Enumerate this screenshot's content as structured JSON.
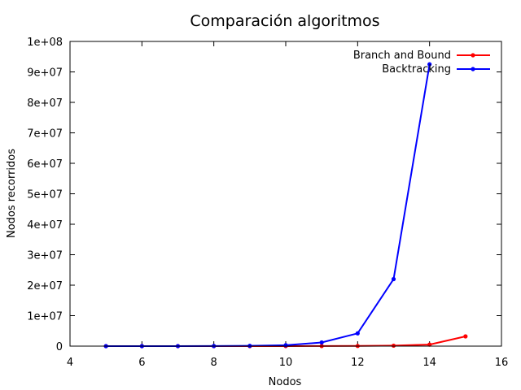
{
  "chart_data": {
    "type": "line",
    "title": "Comparación algoritmos",
    "xlabel": "Nodos",
    "ylabel": "Nodos recorridos",
    "xlim": [
      4,
      16
    ],
    "ylim": [
      0,
      100000000
    ],
    "xticks": [
      4,
      6,
      8,
      10,
      12,
      14,
      16
    ],
    "xtick_labels": [
      "4",
      "6",
      "8",
      "10",
      "12",
      "14",
      "16"
    ],
    "yticks": [
      0,
      10000000,
      20000000,
      30000000,
      40000000,
      50000000,
      60000000,
      70000000,
      80000000,
      90000000,
      100000000
    ],
    "ytick_labels": [
      "0",
      "1e+07",
      "2e+07",
      "3e+07",
      "4e+07",
      "5e+07",
      "6e+07",
      "7e+07",
      "8e+07",
      "9e+07",
      "1e+08"
    ],
    "grid": false,
    "legend_position": "top-right",
    "series": [
      {
        "name": "Branch and Bound",
        "color": "#ff0000",
        "x": [
          5,
          6,
          7,
          8,
          9,
          10,
          11,
          12,
          13,
          14,
          15
        ],
        "y": [
          200,
          500,
          1000,
          2000,
          4000,
          10000,
          20000,
          50000,
          150000,
          500000,
          3200000
        ]
      },
      {
        "name": "Backtracking",
        "color": "#0000ff",
        "x": [
          5,
          6,
          7,
          8,
          9,
          10,
          11,
          12,
          13,
          14
        ],
        "y": [
          500,
          2000,
          8000,
          30000,
          100000,
          300000,
          1200000,
          4200000,
          22000000,
          92500000
        ]
      }
    ]
  }
}
